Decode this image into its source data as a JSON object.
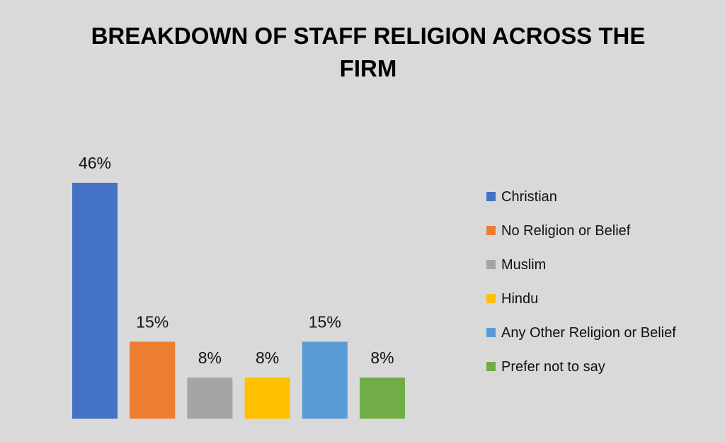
{
  "chart_data": {
    "type": "bar",
    "title": "BREAKDOWN OF STAFF RELIGION ACROSS THE FIRM",
    "categories": [
      "Christian",
      "No Religion or Belief",
      "Muslim",
      "Hindu",
      "Any Other Religion or Belief",
      "Prefer not to say"
    ],
    "values": [
      46,
      15,
      8,
      8,
      15,
      8
    ],
    "data_labels": [
      "46%",
      "15%",
      "8%",
      "8%",
      "15%",
      "8%"
    ],
    "colors": [
      "#4472c4",
      "#ed7d31",
      "#a5a5a5",
      "#ffc000",
      "#5b9bd5",
      "#70ad47"
    ],
    "xlabel": "",
    "ylabel": "",
    "ylim": [
      0,
      46
    ],
    "grid": false,
    "legend_position": "right"
  }
}
